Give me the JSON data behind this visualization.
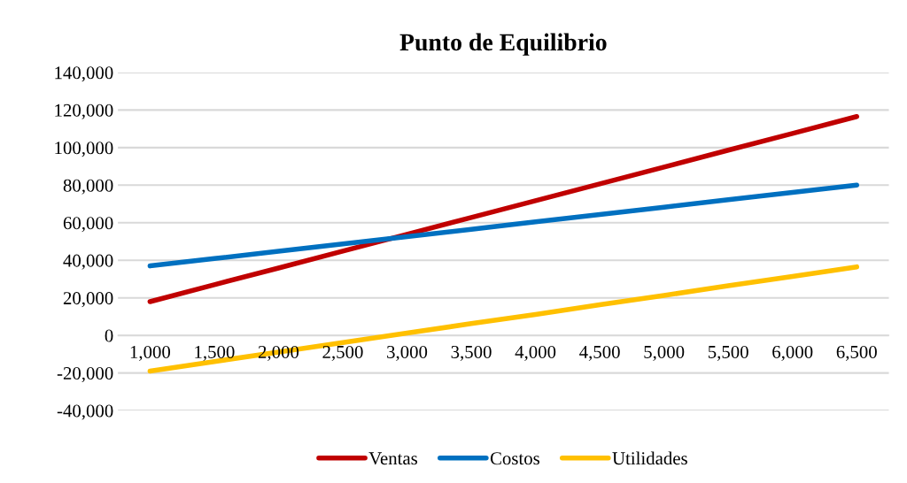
{
  "chart_data": {
    "type": "line",
    "title": "Punto de Equilibrio",
    "categories": [
      "1,000",
      "1,500",
      "2,000",
      "2,500",
      "3,000",
      "3,500",
      "4,000",
      "4,500",
      "5,000",
      "5,500",
      "6,000",
      "6,500"
    ],
    "series": [
      {
        "name": "Ventas",
        "color": "#c00000",
        "values": [
          18000,
          27000,
          35900,
          44900,
          53800,
          62800,
          71700,
          80700,
          89600,
          98600,
          107500,
          116500
        ]
      },
      {
        "name": "Costos",
        "color": "#0070c0",
        "values": [
          37000,
          40900,
          44800,
          48700,
          52600,
          56500,
          60500,
          64400,
          68300,
          72200,
          76100,
          80000
        ]
      },
      {
        "name": "Utilidades",
        "color": "#ffc000",
        "values": [
          -19000,
          -13900,
          -8900,
          -3800,
          1200,
          6300,
          11200,
          16300,
          21300,
          26400,
          31400,
          36500
        ]
      }
    ],
    "ylim": [
      -40000,
      140000
    ],
    "yticks": [
      {
        "value": -40000,
        "label": "-40,000"
      },
      {
        "value": -20000,
        "label": "-20,000"
      },
      0,
      {
        "value": 20000,
        "label": "20,000"
      },
      {
        "value": 40000,
        "label": "40,000"
      },
      {
        "value": 60000,
        "label": "60,000"
      },
      {
        "value": 80000,
        "label": "80,000"
      },
      {
        "value": 100000,
        "label": "100,000"
      },
      {
        "value": 120000,
        "label": "120,000"
      },
      {
        "value": 140000,
        "label": "140,000"
      }
    ],
    "grid": "y",
    "legend": "bottom",
    "marker": "none",
    "line_style": "solid"
  }
}
